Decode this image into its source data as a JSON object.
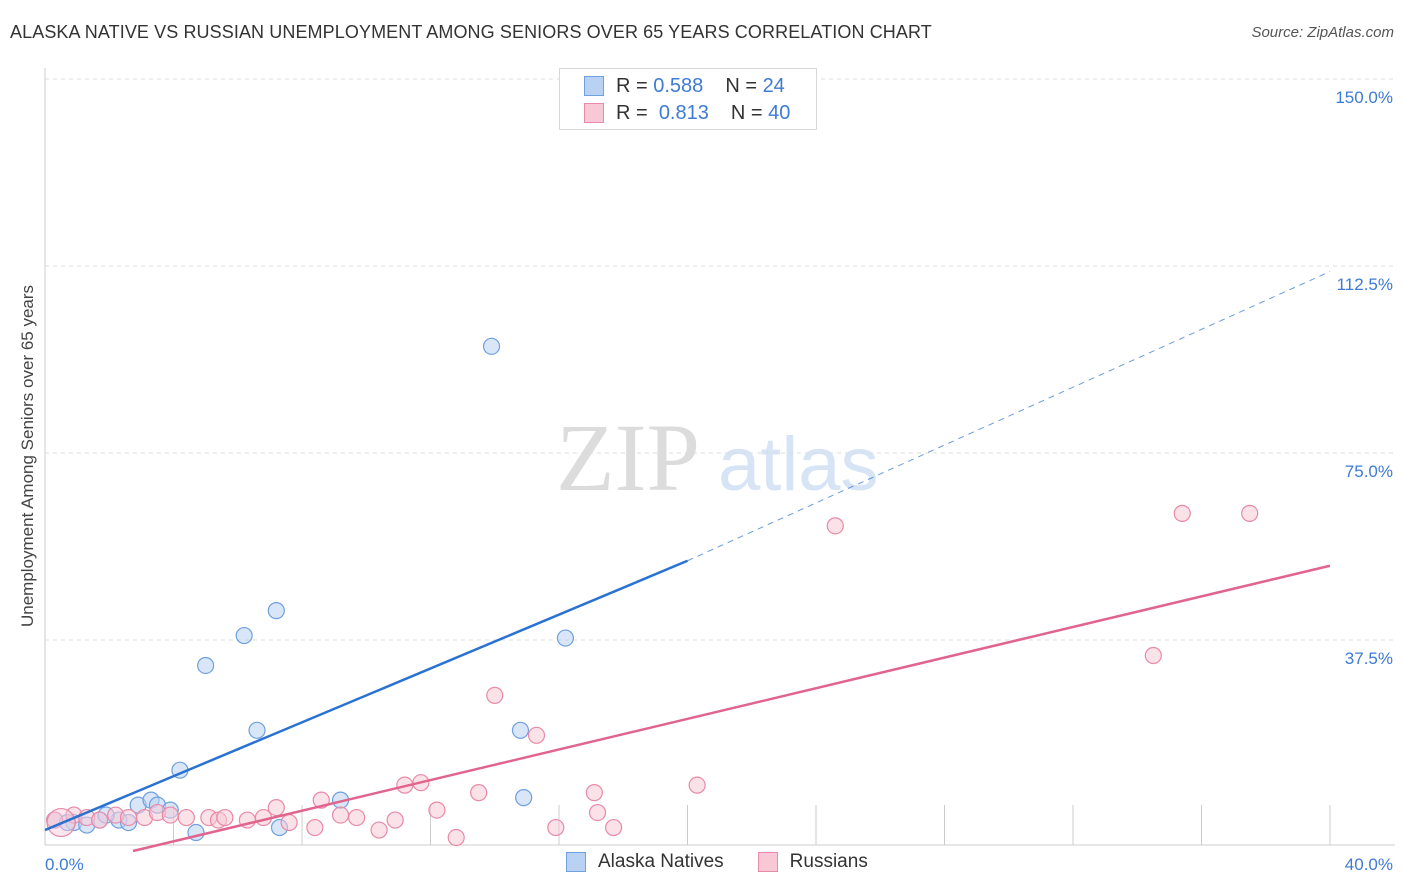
{
  "title": "ALASKA NATIVE VS RUSSIAN UNEMPLOYMENT AMONG SENIORS OVER 65 YEARS CORRELATION CHART",
  "source": "Source: ZipAtlas.com",
  "watermark": {
    "zip": "ZIP",
    "atlas": "atlas"
  },
  "legend_top": [
    {
      "r_label": "R =",
      "r_value": "0.588",
      "n_label": "N =",
      "n_value": "24"
    },
    {
      "r_label": "R =",
      "r_value": "0.813",
      "n_label": "N =",
      "n_value": "40"
    }
  ],
  "chart_data": {
    "type": "scatter",
    "title": "ALASKA NATIVE VS RUSSIAN UNEMPLOYMENT AMONG SENIORS OVER 65 YEARS CORRELATION CHART",
    "xlabel": "",
    "ylabel": "Unemployment Among Seniors over 65 years",
    "xlim": [
      0,
      40
    ],
    "ylim": [
      0,
      150
    ],
    "x_tick_labels": [
      "0.0%",
      "40.0%"
    ],
    "y_ticks": [
      37.5,
      75,
      112.5,
      150
    ],
    "y_tick_labels": [
      "37.5%",
      "75.0%",
      "112.5%",
      "150.0%"
    ],
    "grid": true,
    "legend_position": "top-center",
    "series": [
      {
        "name": "Alaska Natives",
        "color": "#6fa0e0",
        "fill": "#b9d2f3",
        "line_color": "#2a72d2",
        "trend": {
          "x0": 0,
          "y0": 3,
          "x1": 20,
          "y1": 57,
          "extend_to": 40,
          "extend_y": 115
        },
        "points": [
          [
            0.3,
            5
          ],
          [
            0.9,
            4.5
          ],
          [
            1.3,
            4
          ],
          [
            1.7,
            5
          ],
          [
            2.3,
            5
          ],
          [
            2.6,
            4.5
          ],
          [
            2.9,
            8
          ],
          [
            3.3,
            9
          ],
          [
            3.5,
            8
          ],
          [
            3.9,
            7
          ],
          [
            4.2,
            15
          ],
          [
            4.7,
            2.5
          ],
          [
            5.0,
            36
          ],
          [
            6.2,
            42
          ],
          [
            6.6,
            23
          ],
          [
            7.2,
            47
          ],
          [
            7.3,
            3.5
          ],
          [
            9.2,
            9
          ],
          [
            13.9,
            100
          ],
          [
            14.8,
            23
          ],
          [
            14.9,
            9.5
          ],
          [
            16.2,
            41.5
          ],
          [
            0.7,
            4.5
          ],
          [
            1.9,
            6
          ]
        ]
      },
      {
        "name": "Russians",
        "color": "#e88aa8",
        "fill": "#f8c8d6",
        "line_color": "#e0648e",
        "trend": {
          "x0": 0,
          "y0": -1,
          "x1": 40,
          "y1": 56
        },
        "points": [
          [
            0.3,
            5
          ],
          [
            0.9,
            6
          ],
          [
            1.3,
            5.5
          ],
          [
            1.7,
            5
          ],
          [
            2.2,
            6
          ],
          [
            2.6,
            5.5
          ],
          [
            3.1,
            5.5
          ],
          [
            3.5,
            6.5
          ],
          [
            3.9,
            6
          ],
          [
            4.4,
            5.5
          ],
          [
            5.1,
            5.5
          ],
          [
            5.4,
            5
          ],
          [
            5.6,
            5.5
          ],
          [
            6.3,
            5
          ],
          [
            6.8,
            5.5
          ],
          [
            7.2,
            7.5
          ],
          [
            7.6,
            4.5
          ],
          [
            8.4,
            3.5
          ],
          [
            8.6,
            9
          ],
          [
            9.2,
            6
          ],
          [
            9.7,
            5.5
          ],
          [
            10.4,
            3
          ],
          [
            10.9,
            5
          ],
          [
            11.2,
            12
          ],
          [
            11.7,
            12.5
          ],
          [
            12.2,
            7
          ],
          [
            12.8,
            1.5
          ],
          [
            13.5,
            10.5
          ],
          [
            14.0,
            30
          ],
          [
            15.3,
            22
          ],
          [
            15.9,
            3.5
          ],
          [
            17.1,
            10.5
          ],
          [
            17.2,
            6.5
          ],
          [
            17.7,
            3.5
          ],
          [
            20.3,
            12
          ],
          [
            24.6,
            64
          ],
          [
            34.5,
            38
          ],
          [
            35.4,
            66.5
          ],
          [
            37.5,
            66.5
          ],
          [
            0.5,
            4.5
          ]
        ]
      }
    ]
  }
}
